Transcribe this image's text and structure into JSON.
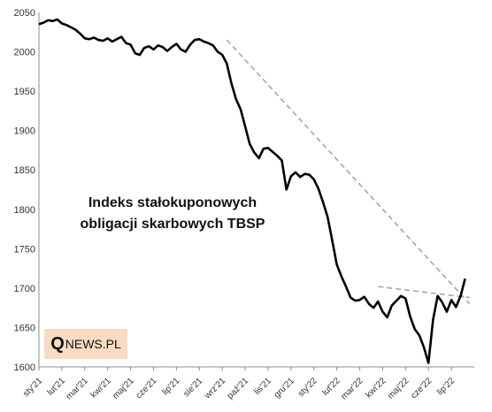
{
  "title_lines": [
    "Indeks stałokuponowych",
    "obligacji skarbowych TBSP"
  ],
  "logo": {
    "q": "Q",
    "rest": "NEWS.PL"
  },
  "colors": {
    "series": "#000000",
    "trend": "#a6a6a6",
    "logo_bg": "#f7dcc3"
  },
  "chart_data": {
    "type": "line",
    "title": "Indeks stałokuponowych obligacji skarbowych TBSP",
    "xlabel": "",
    "ylabel": "",
    "ylim": [
      1600,
      2050
    ],
    "yticks": [
      1600,
      1650,
      1700,
      1750,
      1800,
      1850,
      1900,
      1950,
      2000,
      2050
    ],
    "xtick_labels": [
      "sty'21",
      "lut'21",
      "mar'21",
      "kwi'21",
      "maj'21",
      "cze'21",
      "lip'21",
      "sie'21",
      "wrz'21",
      "paź'21",
      "lis'21",
      "gru'21",
      "sty'22",
      "lut'22",
      "mar'22",
      "kwi'22",
      "maj'22",
      "cze'22",
      "lip'22"
    ],
    "grid": false,
    "legend": "none",
    "series": [
      {
        "x": [
          0,
          0.2,
          0.4,
          0.6,
          0.8,
          1.0,
          1.2,
          1.4,
          1.6,
          1.8,
          2.0,
          2.2,
          2.4,
          2.6,
          2.8,
          3.0,
          3.2,
          3.4,
          3.6,
          3.8,
          4.0,
          4.2,
          4.4,
          4.6,
          4.8,
          5.0,
          5.2,
          5.4,
          5.6,
          5.8,
          6.0,
          6.2,
          6.4,
          6.6,
          6.8,
          7.0,
          7.2,
          7.4,
          7.6,
          7.8,
          8.0,
          8.2,
          8.4,
          8.6,
          8.8,
          9.0,
          9.2,
          9.4,
          9.6,
          9.8,
          10.0,
          10.2,
          10.4,
          10.6,
          10.8,
          11.0,
          11.2,
          11.4,
          11.6,
          11.8,
          12.0,
          12.2,
          12.4,
          12.6,
          12.8,
          13.0,
          13.2,
          13.4,
          13.6,
          13.8,
          14.0,
          14.2,
          14.4,
          14.6,
          14.8,
          15.0,
          15.2,
          15.4,
          15.6,
          15.8,
          16.0,
          16.2,
          16.4,
          16.6,
          16.8,
          17.0,
          17.2,
          17.4,
          17.6,
          17.8,
          18.0,
          18.2,
          18.4,
          18.6
        ],
        "y": [
          2035,
          2037,
          2040,
          2039,
          2041,
          2036,
          2034,
          2031,
          2028,
          2023,
          2017,
          2016,
          2018,
          2015,
          2014,
          2017,
          2013,
          2016,
          2019,
          2011,
          2009,
          1998,
          1996,
          2005,
          2007,
          2003,
          2008,
          2006,
          2001,
          2006,
          2010,
          2003,
          2000,
          2009,
          2015,
          2016,
          2013,
          2011,
          2008,
          2000,
          1996,
          1985,
          1960,
          1940,
          1927,
          1905,
          1883,
          1872,
          1865,
          1877,
          1878,
          1873,
          1868,
          1862,
          1825,
          1842,
          1847,
          1841,
          1845,
          1844,
          1838,
          1826,
          1809,
          1790,
          1760,
          1730,
          1715,
          1702,
          1688,
          1684,
          1685,
          1689,
          1680,
          1675,
          1683,
          1670,
          1663,
          1678,
          1684,
          1690,
          1687,
          1664,
          1648,
          1640,
          1625,
          1605,
          1660,
          1690,
          1682,
          1670,
          1685,
          1676,
          1690,
          1712
        ],
        "name": ""
      }
    ],
    "trendlines": [
      {
        "x": [
          8.2,
          18.8
        ],
        "y": [
          2015,
          1680
        ]
      },
      {
        "x": [
          14.8,
          18.8
        ],
        "y": [
          1702,
          1688
        ]
      }
    ]
  }
}
